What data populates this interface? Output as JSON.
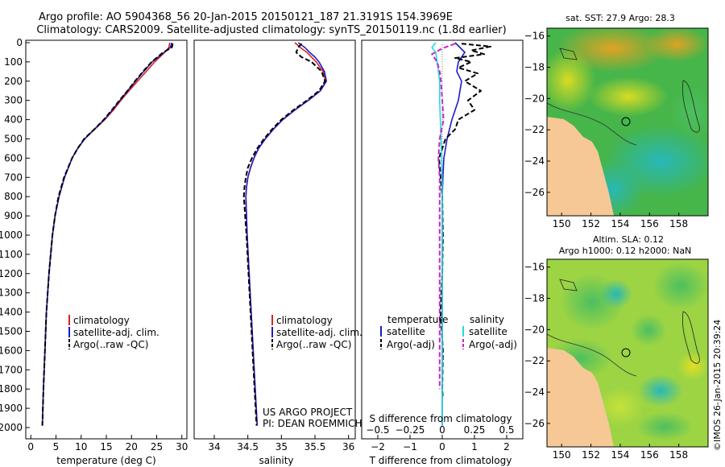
{
  "header": {
    "line1": "Argo profile: AO 5904368_56 20-Jan-2015 20150121_187 21.3191S 154.3969E",
    "line2": "Climatology: CARS2009. Satellite-adjusted climatology: synTS_20150119.nc (1.8d earlier)"
  },
  "colors": {
    "climatology": "#e02020",
    "satellite": "#1c1ccc",
    "argo": "#000000",
    "sal_satellite": "#22dddd",
    "sal_argo": "#cc22cc",
    "land": "#f5c896"
  },
  "depth_axis": {
    "min": 0,
    "max": 2000,
    "ticks": [
      0,
      100,
      200,
      300,
      400,
      500,
      600,
      700,
      800,
      900,
      1000,
      1100,
      1200,
      1300,
      1400,
      1500,
      1600,
      1700,
      1800,
      1900,
      2000
    ]
  },
  "credits": {
    "project": "US ARGO PROJECT",
    "pi": "PI: DEAN ROEMMICH",
    "imos": "©IMOS 26-Jan-2015 20:39:24"
  },
  "chart_data": [
    {
      "type": "line",
      "name": "temperature",
      "xlabel": "temperature (deg C)",
      "ylabel": "depth",
      "xlim": [
        -1,
        31
      ],
      "ylim": [
        2000,
        0
      ],
      "xticks": [
        0,
        5,
        10,
        15,
        20,
        25,
        30
      ],
      "legend": [
        "climatology",
        "satellite-adj. clim.",
        "Argo(..raw -QC)"
      ],
      "legend_position": "bottom-right",
      "series": [
        {
          "name": "climatology",
          "depth": [
            0,
            25,
            50,
            100,
            150,
            200,
            250,
            300,
            350,
            400,
            450,
            500,
            550,
            600,
            700,
            800,
            900,
            1000,
            1200,
            1400,
            1600,
            1800,
            1990
          ],
          "values": [
            27.6,
            27.4,
            26.6,
            24.6,
            22.9,
            21.2,
            19.5,
            17.9,
            16.4,
            14.7,
            12.7,
            10.7,
            9.3,
            8.2,
            6.7,
            5.6,
            4.8,
            4.3,
            3.6,
            3.1,
            2.8,
            2.5,
            2.3
          ]
        },
        {
          "name": "satellite-adj. clim.",
          "depth": [
            0,
            25,
            50,
            100,
            150,
            200,
            250,
            300,
            350,
            400,
            450,
            500,
            550,
            600,
            700,
            800,
            900,
            1000,
            1200,
            1400,
            1600,
            1800,
            1990
          ],
          "values": [
            28.0,
            27.7,
            26.5,
            24.1,
            22.4,
            20.8,
            19.2,
            17.7,
            16.2,
            14.6,
            12.6,
            10.7,
            9.3,
            8.2,
            6.7,
            5.6,
            4.8,
            4.3,
            3.6,
            3.1,
            2.8,
            2.5,
            2.3
          ]
        },
        {
          "name": "Argo(..raw -QC)",
          "depth": [
            5,
            25,
            50,
            100,
            150,
            200,
            250,
            300,
            350,
            400,
            450,
            500,
            550,
            600,
            700,
            800,
            900,
            1000,
            1200,
            1400,
            1600,
            1800,
            1990
          ],
          "values": [
            28.2,
            28.0,
            26.3,
            24.0,
            22.3,
            20.7,
            19.2,
            17.6,
            16.1,
            14.5,
            12.6,
            10.6,
            9.3,
            8.2,
            6.6,
            5.5,
            4.8,
            4.3,
            3.6,
            3.1,
            2.8,
            2.5,
            2.3
          ]
        }
      ]
    },
    {
      "type": "line",
      "name": "salinity",
      "xlabel": "salinity",
      "ylabel": "depth",
      "xlim": [
        33.7,
        36.1
      ],
      "ylim": [
        2000,
        0
      ],
      "xticks": [
        34,
        34.5,
        35,
        35.5,
        36
      ],
      "legend": [
        "climatology",
        "satellite-adj. clim.",
        "Argo(..raw -QC)"
      ],
      "legend_position": "bottom-right",
      "series": [
        {
          "name": "climatology",
          "depth": [
            0,
            25,
            50,
            75,
            100,
            150,
            200,
            250,
            300,
            350,
            400,
            450,
            500,
            550,
            600,
            650,
            700,
            750,
            800,
            900,
            1000,
            1200,
            1400,
            1600,
            1800,
            1990
          ],
          "values": [
            35.2,
            35.28,
            35.38,
            35.45,
            35.52,
            35.62,
            35.66,
            35.58,
            35.4,
            35.2,
            35.02,
            34.88,
            34.76,
            34.66,
            34.59,
            34.54,
            34.5,
            34.48,
            34.47,
            34.48,
            34.49,
            34.52,
            34.55,
            34.58,
            34.61,
            34.64
          ]
        },
        {
          "name": "satellite-adj. clim.",
          "depth": [
            0,
            25,
            50,
            75,
            100,
            150,
            200,
            250,
            300,
            350,
            400,
            450,
            500,
            550,
            600,
            650,
            700,
            750,
            800,
            900,
            1000,
            1200,
            1400,
            1600,
            1800,
            1990
          ],
          "values": [
            35.25,
            35.35,
            35.42,
            35.5,
            35.56,
            35.64,
            35.67,
            35.58,
            35.4,
            35.2,
            35.02,
            34.88,
            34.76,
            34.66,
            34.59,
            34.54,
            34.5,
            34.48,
            34.47,
            34.48,
            34.49,
            34.52,
            34.55,
            34.58,
            34.61,
            34.64
          ]
        },
        {
          "name": "Argo(..raw -QC)",
          "depth": [
            5,
            25,
            50,
            75,
            100,
            150,
            200,
            250,
            300,
            350,
            400,
            450,
            500,
            550,
            600,
            650,
            700,
            750,
            800,
            900,
            1000,
            1200,
            1400,
            1600,
            1800,
            1990
          ],
          "values": [
            35.3,
            35.25,
            35.22,
            35.3,
            35.45,
            35.6,
            35.65,
            35.56,
            35.38,
            35.18,
            35.0,
            34.86,
            34.74,
            34.64,
            34.56,
            34.5,
            34.47,
            34.45,
            34.44,
            34.46,
            34.48,
            34.51,
            34.54,
            34.57,
            34.6,
            34.63
          ]
        }
      ]
    },
    {
      "type": "line",
      "name": "difference from climatology",
      "xlabel": "T difference from climatology",
      "x2label": "S difference from climatology",
      "xlim": [
        -2.5,
        2.5
      ],
      "ylim": [
        2000,
        0
      ],
      "xticks": [
        -2,
        -1,
        0,
        1,
        2
      ],
      "xticklabels": [
        "−2",
        "−1",
        "0",
        "1",
        "2"
      ],
      "x2ticks": [
        -0.5,
        -0.25,
        0,
        0.25,
        0.5
      ],
      "x2ticklabels": [
        "−0.5",
        "−0.25",
        "0",
        "0.25",
        "0.5"
      ],
      "legend_headers": [
        "temperature",
        "salinity"
      ],
      "legend": [
        "satellite",
        "Argo(-adj)",
        "satellite",
        "Argo(-adj)"
      ],
      "series": [
        {
          "name": "temperature satellite",
          "depth": [
            0,
            50,
            100,
            150,
            200,
            300,
            400,
            500,
            600,
            700,
            800,
            1000,
            1200,
            1400,
            1600,
            1800,
            1990
          ],
          "values": [
            0.4,
            0.7,
            0.5,
            0.45,
            0.6,
            0.5,
            0.3,
            0.15,
            0.05,
            0.02,
            0.0,
            0.0,
            0.0,
            0.0,
            0.0,
            0.0,
            0.0
          ]
        },
        {
          "name": "temperature Argo(-adj)",
          "depth": [
            5,
            20,
            40,
            60,
            80,
            100,
            130,
            160,
            200,
            250,
            300,
            350,
            400,
            450,
            500,
            600,
            700,
            800,
            1000,
            1200,
            1400,
            1600,
            1800,
            1850
          ],
          "values": [
            0.6,
            1.5,
            0.9,
            1.3,
            0.4,
            0.9,
            0.5,
            1.1,
            0.7,
            1.2,
            0.8,
            1.0,
            0.5,
            0.4,
            0.1,
            -0.1,
            -0.05,
            0.0,
            0.02,
            0.0,
            -0.05,
            0.02,
            0.0,
            0.02
          ]
        },
        {
          "name": "salinity satellite",
          "depth": [
            0,
            25,
            50,
            100,
            150,
            200,
            300,
            400,
            500,
            600,
            800,
            1000,
            1200,
            1400,
            1600,
            1800,
            1990
          ],
          "values": [
            -0.05,
            -0.08,
            -0.05,
            -0.04,
            -0.03,
            -0.02,
            -0.02,
            -0.015,
            -0.01,
            -0.005,
            0.0,
            0.0,
            0.0,
            0.0,
            0.0,
            0.0,
            0.0
          ]
        },
        {
          "name": "salinity Argo(-adj)",
          "depth": [
            5,
            30,
            60,
            100,
            150,
            200,
            300,
            400,
            500,
            600,
            700,
            800,
            1000,
            1200,
            1400,
            1600,
            1800
          ],
          "values": [
            0.1,
            0.0,
            -0.08,
            -0.04,
            -0.02,
            -0.01,
            0.0,
            0.01,
            -0.02,
            -0.03,
            -0.02,
            -0.02,
            -0.02,
            -0.02,
            -0.02,
            -0.02,
            -0.02
          ]
        }
      ]
    },
    {
      "type": "heatmap",
      "name": "sst-map",
      "title": "sat. SST: 27.9 Argo: 28.3",
      "xticks": [
        150,
        152,
        154,
        156,
        158
      ],
      "yticks": [
        -16,
        -18,
        -20,
        -22,
        -24,
        -26
      ],
      "xlim": [
        149,
        160
      ],
      "ylim": [
        -27.5,
        -15.5
      ],
      "marker": {
        "lon": 154.3969,
        "lat": -21.3191
      },
      "colormap": "jet"
    },
    {
      "type": "heatmap",
      "name": "sla-map",
      "title": "Altim. SLA: 0.12",
      "subtitle": "Argo h1000: 0.12 h2000: NaN",
      "xticks": [
        150,
        152,
        154,
        156,
        158
      ],
      "yticks": [
        -16,
        -18,
        -20,
        -22,
        -24,
        -26
      ],
      "xlim": [
        149,
        160
      ],
      "ylim": [
        -27.5,
        -15.5
      ],
      "marker": {
        "lon": 154.3969,
        "lat": -21.3191
      },
      "colormap": "jet"
    }
  ]
}
